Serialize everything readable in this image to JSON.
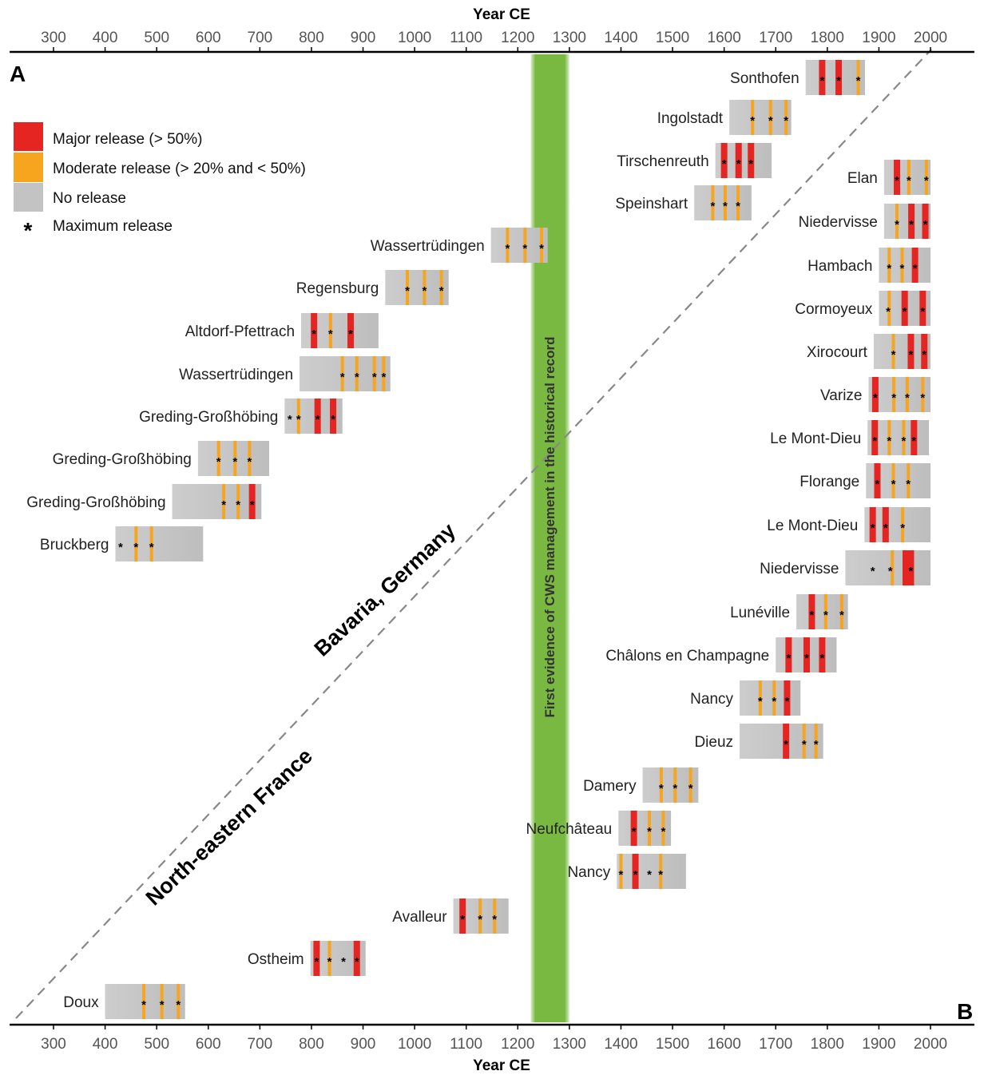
{
  "chart_data": {
    "type": "timeline",
    "axis_title_top": "Year CE",
    "axis_title_bottom": "Year CE",
    "xlim": [
      215,
      2085
    ],
    "ticks": [
      300,
      400,
      500,
      600,
      700,
      800,
      900,
      1000,
      1100,
      1200,
      1300,
      1400,
      1500,
      1600,
      1700,
      1800,
      1900,
      2000
    ],
    "panel_label_top": "A",
    "panel_label_bottom": "B",
    "band": {
      "from": 1225,
      "to": 1300,
      "label": "First evidence of CWS management in the historical record",
      "color": "#7ab941"
    },
    "region_label_upper": "Bavaria, Germany",
    "region_label_lower": "North-eastern France",
    "colors": {
      "major": "#e52521",
      "moderate": "#f7a41f",
      "none": "#c3c3c3",
      "band": "#7ab941",
      "axis": "#000000",
      "tick_label": "#555555"
    },
    "legend": {
      "placement": "top-left",
      "items": [
        {
          "key": "major",
          "label": "Major release (> 50%)"
        },
        {
          "key": "moderate",
          "label": "Moderate release (> 20% and < 50%)"
        },
        {
          "key": "none",
          "label": "No release"
        },
        {
          "key": "star",
          "symbol": "*",
          "label": "Maximum release"
        }
      ]
    },
    "series": [
      {
        "site": "Sonthofen",
        "region": "Bavaria",
        "start": 1758,
        "end": 1873,
        "events": [
          {
            "year": 1790,
            "type": "major"
          },
          {
            "year": 1822,
            "type": "major"
          },
          {
            "year": 1860,
            "type": "moderate"
          }
        ],
        "stars": [
          1790,
          1822,
          1860
        ]
      },
      {
        "site": "Ingolstadt",
        "region": "Bavaria",
        "start": 1610,
        "end": 1730,
        "events": [
          {
            "year": 1655,
            "type": "moderate"
          },
          {
            "year": 1690,
            "type": "moderate"
          },
          {
            "year": 1720,
            "type": "moderate"
          }
        ],
        "stars": [
          1655,
          1690,
          1720
        ]
      },
      {
        "site": "Tirschenreuth",
        "region": "Bavaria",
        "start": 1583,
        "end": 1692,
        "events": [
          {
            "year": 1600,
            "type": "major"
          },
          {
            "year": 1628,
            "type": "major"
          },
          {
            "year": 1652,
            "type": "major"
          }
        ],
        "stars": [
          1600,
          1628,
          1652
        ]
      },
      {
        "site": "Speinshart",
        "region": "Bavaria",
        "start": 1542,
        "end": 1653,
        "events": [
          {
            "year": 1578,
            "type": "moderate"
          },
          {
            "year": 1602,
            "type": "moderate"
          },
          {
            "year": 1627,
            "type": "moderate"
          }
        ],
        "stars": [
          1578,
          1602,
          1627
        ]
      },
      {
        "site": "Wassertrüdingen",
        "region": "Bavaria",
        "start": 1148,
        "end": 1258,
        "events": [
          {
            "year": 1180,
            "type": "moderate"
          },
          {
            "year": 1214,
            "type": "moderate"
          },
          {
            "year": 1246,
            "type": "moderate"
          }
        ],
        "stars": [
          1180,
          1214,
          1246
        ]
      },
      {
        "site": "Regensburg",
        "region": "Bavaria",
        "start": 943,
        "end": 1066,
        "events": [
          {
            "year": 986,
            "type": "moderate"
          },
          {
            "year": 1019,
            "type": "moderate"
          },
          {
            "year": 1052,
            "type": "moderate"
          }
        ],
        "stars": [
          986,
          1019,
          1052
        ]
      },
      {
        "site": "Altdorf-Pfettrach",
        "region": "Bavaria",
        "start": 780,
        "end": 930,
        "events": [
          {
            "year": 805,
            "type": "major"
          },
          {
            "year": 837,
            "type": "moderate"
          },
          {
            "year": 876,
            "type": "major"
          }
        ],
        "stars": [
          805,
          837,
          876
        ]
      },
      {
        "site": "Wassertrüdingen",
        "region": "Bavaria",
        "start": 777,
        "end": 953,
        "events": [
          {
            "year": 860,
            "type": "moderate"
          },
          {
            "year": 888,
            "type": "moderate"
          },
          {
            "year": 922,
            "type": "moderate"
          },
          {
            "year": 940,
            "type": "moderate"
          }
        ],
        "stars": [
          860,
          888,
          922,
          940
        ]
      },
      {
        "site": "Greding-Großhöbing",
        "region": "Bavaria",
        "start": 748,
        "end": 860,
        "events": [
          {
            "year": 775,
            "type": "moderate"
          },
          {
            "year": 812,
            "type": "major"
          },
          {
            "year": 842,
            "type": "major"
          }
        ],
        "stars": [
          758,
          775,
          812,
          842
        ]
      },
      {
        "site": "Greding-Großhöbing",
        "region": "Bavaria",
        "start": 580,
        "end": 718,
        "events": [
          {
            "year": 620,
            "type": "moderate"
          },
          {
            "year": 652,
            "type": "moderate"
          },
          {
            "year": 680,
            "type": "moderate"
          }
        ],
        "stars": [
          620,
          652,
          680
        ]
      },
      {
        "site": "Greding-Großhöbing",
        "region": "Bavaria",
        "start": 530,
        "end": 703,
        "events": [
          {
            "year": 630,
            "type": "moderate"
          },
          {
            "year": 658,
            "type": "moderate"
          },
          {
            "year": 685,
            "type": "major"
          }
        ],
        "stars": [
          630,
          658,
          685
        ]
      },
      {
        "site": "Bruckberg",
        "region": "Bavaria",
        "start": 420,
        "end": 590,
        "events": [
          {
            "year": 460,
            "type": "moderate"
          },
          {
            "year": 490,
            "type": "moderate"
          }
        ],
        "stars": [
          430,
          460,
          490
        ]
      },
      {
        "site": "Elan",
        "region": "France",
        "start": 1910,
        "end": 2000,
        "events": [
          {
            "year": 1935,
            "type": "major"
          },
          {
            "year": 1958,
            "type": "moderate"
          },
          {
            "year": 1992,
            "type": "moderate"
          }
        ],
        "stars": [
          1935,
          1958,
          1992
        ]
      },
      {
        "site": "Niedervisse",
        "region": "France",
        "start": 1910,
        "end": 2000,
        "events": [
          {
            "year": 1935,
            "type": "moderate"
          },
          {
            "year": 1963,
            "type": "major"
          },
          {
            "year": 1990,
            "type": "major"
          }
        ],
        "stars": [
          1935,
          1963,
          1990
        ]
      },
      {
        "site": "Hambach",
        "region": "France",
        "start": 1900,
        "end": 2000,
        "events": [
          {
            "year": 1920,
            "type": "moderate"
          },
          {
            "year": 1945,
            "type": "moderate"
          },
          {
            "year": 1970,
            "type": "major"
          }
        ],
        "stars": [
          1920,
          1945,
          1970
        ]
      },
      {
        "site": "Cormoyeux",
        "region": "France",
        "start": 1900,
        "end": 2000,
        "events": [
          {
            "year": 1920,
            "type": "moderate"
          },
          {
            "year": 1950,
            "type": "major"
          },
          {
            "year": 1985,
            "type": "major"
          }
        ],
        "stars": [
          1918,
          1950,
          1985
        ]
      },
      {
        "site": "Xirocourt",
        "region": "France",
        "start": 1890,
        "end": 2000,
        "events": [
          {
            "year": 1928,
            "type": "moderate"
          },
          {
            "year": 1962,
            "type": "major"
          },
          {
            "year": 1988,
            "type": "major"
          }
        ],
        "stars": [
          1928,
          1962,
          1988
        ]
      },
      {
        "site": "Varize",
        "region": "France",
        "start": 1880,
        "end": 2000,
        "events": [
          {
            "year": 1893,
            "type": "major"
          },
          {
            "year": 1929,
            "type": "moderate"
          },
          {
            "year": 1955,
            "type": "moderate"
          },
          {
            "year": 1985,
            "type": "moderate"
          }
        ],
        "stars": [
          1893,
          1929,
          1955,
          1985
        ]
      },
      {
        "site": "Le Mont-Dieu",
        "region": "France",
        "start": 1878,
        "end": 1997,
        "events": [
          {
            "year": 1892,
            "type": "major"
          },
          {
            "year": 1920,
            "type": "moderate"
          },
          {
            "year": 1948,
            "type": "moderate"
          },
          {
            "year": 1968,
            "type": "major"
          }
        ],
        "stars": [
          1892,
          1920,
          1948,
          1968
        ]
      },
      {
        "site": "Florange",
        "region": "France",
        "start": 1875,
        "end": 2000,
        "events": [
          {
            "year": 1897,
            "type": "major"
          },
          {
            "year": 1928,
            "type": "moderate"
          },
          {
            "year": 1957,
            "type": "moderate"
          }
        ],
        "stars": [
          1897,
          1928,
          1957
        ]
      },
      {
        "site": "Le Mont-Dieu",
        "region": "France",
        "start": 1872,
        "end": 2000,
        "events": [
          {
            "year": 1888,
            "type": "major"
          },
          {
            "year": 1913,
            "type": "major"
          },
          {
            "year": 1946,
            "type": "moderate"
          }
        ],
        "stars": [
          1888,
          1913,
          1946
        ]
      },
      {
        "site": "Niedervisse",
        "region": "France",
        "start": 1835,
        "end": 2000,
        "events": [
          {
            "year": 1926,
            "type": "moderate"
          },
          {
            "year": 1952,
            "type": "major"
          },
          {
            "year": 1962,
            "type": "major"
          }
        ],
        "stars": [
          1888,
          1922,
          1962
        ]
      },
      {
        "site": "Lunéville",
        "region": "France",
        "start": 1740,
        "end": 1840,
        "events": [
          {
            "year": 1770,
            "type": "major"
          },
          {
            "year": 1797,
            "type": "moderate"
          },
          {
            "year": 1828,
            "type": "moderate"
          }
        ],
        "stars": [
          1770,
          1797,
          1828
        ]
      },
      {
        "site": "Châlons en Champagne",
        "region": "France",
        "start": 1700,
        "end": 1818,
        "events": [
          {
            "year": 1725,
            "type": "major"
          },
          {
            "year": 1760,
            "type": "major"
          },
          {
            "year": 1790,
            "type": "major"
          }
        ],
        "stars": [
          1725,
          1760,
          1790
        ]
      },
      {
        "site": "Nancy",
        "region": "France",
        "start": 1630,
        "end": 1748,
        "events": [
          {
            "year": 1670,
            "type": "moderate"
          },
          {
            "year": 1697,
            "type": "moderate"
          },
          {
            "year": 1722,
            "type": "major"
          }
        ],
        "stars": [
          1670,
          1697,
          1722
        ]
      },
      {
        "site": "Dieuz",
        "region": "France",
        "start": 1630,
        "end": 1792,
        "events": [
          {
            "year": 1720,
            "type": "major"
          },
          {
            "year": 1755,
            "type": "moderate"
          },
          {
            "year": 1778,
            "type": "moderate"
          }
        ],
        "stars": [
          1720,
          1755,
          1778
        ]
      },
      {
        "site": "Damery",
        "region": "France",
        "start": 1442,
        "end": 1550,
        "events": [
          {
            "year": 1478,
            "type": "moderate"
          },
          {
            "year": 1505,
            "type": "moderate"
          },
          {
            "year": 1535,
            "type": "moderate"
          }
        ],
        "stars": [
          1478,
          1505,
          1535
        ]
      },
      {
        "site": "Neufchâteau",
        "region": "France",
        "start": 1395,
        "end": 1497,
        "events": [
          {
            "year": 1425,
            "type": "major"
          },
          {
            "year": 1455,
            "type": "moderate"
          },
          {
            "year": 1482,
            "type": "moderate"
          }
        ],
        "stars": [
          1425,
          1455,
          1482
        ]
      },
      {
        "site": "Nancy",
        "region": "France",
        "start": 1392,
        "end": 1526,
        "events": [
          {
            "year": 1400,
            "type": "moderate"
          },
          {
            "year": 1428,
            "type": "major"
          },
          {
            "year": 1477,
            "type": "moderate"
          }
        ],
        "stars": [
          1400,
          1428,
          1455,
          1477
        ]
      },
      {
        "site": "Avalleur",
        "region": "France",
        "start": 1075,
        "end": 1182,
        "events": [
          {
            "year": 1093,
            "type": "major"
          },
          {
            "year": 1127,
            "type": "moderate"
          },
          {
            "year": 1155,
            "type": "moderate"
          }
        ],
        "stars": [
          1093,
          1127,
          1155
        ]
      },
      {
        "site": "Ostheim",
        "region": "France",
        "start": 798,
        "end": 905,
        "events": [
          {
            "year": 810,
            "type": "major"
          },
          {
            "year": 835,
            "type": "moderate"
          },
          {
            "year": 888,
            "type": "major"
          }
        ],
        "stars": [
          810,
          835,
          862,
          888
        ]
      },
      {
        "site": "Doux",
        "region": "France",
        "start": 400,
        "end": 555,
        "events": [
          {
            "year": 475,
            "type": "moderate"
          },
          {
            "year": 510,
            "type": "moderate"
          },
          {
            "year": 542,
            "type": "moderate"
          }
        ],
        "stars": [
          475,
          510,
          542
        ]
      }
    ]
  }
}
